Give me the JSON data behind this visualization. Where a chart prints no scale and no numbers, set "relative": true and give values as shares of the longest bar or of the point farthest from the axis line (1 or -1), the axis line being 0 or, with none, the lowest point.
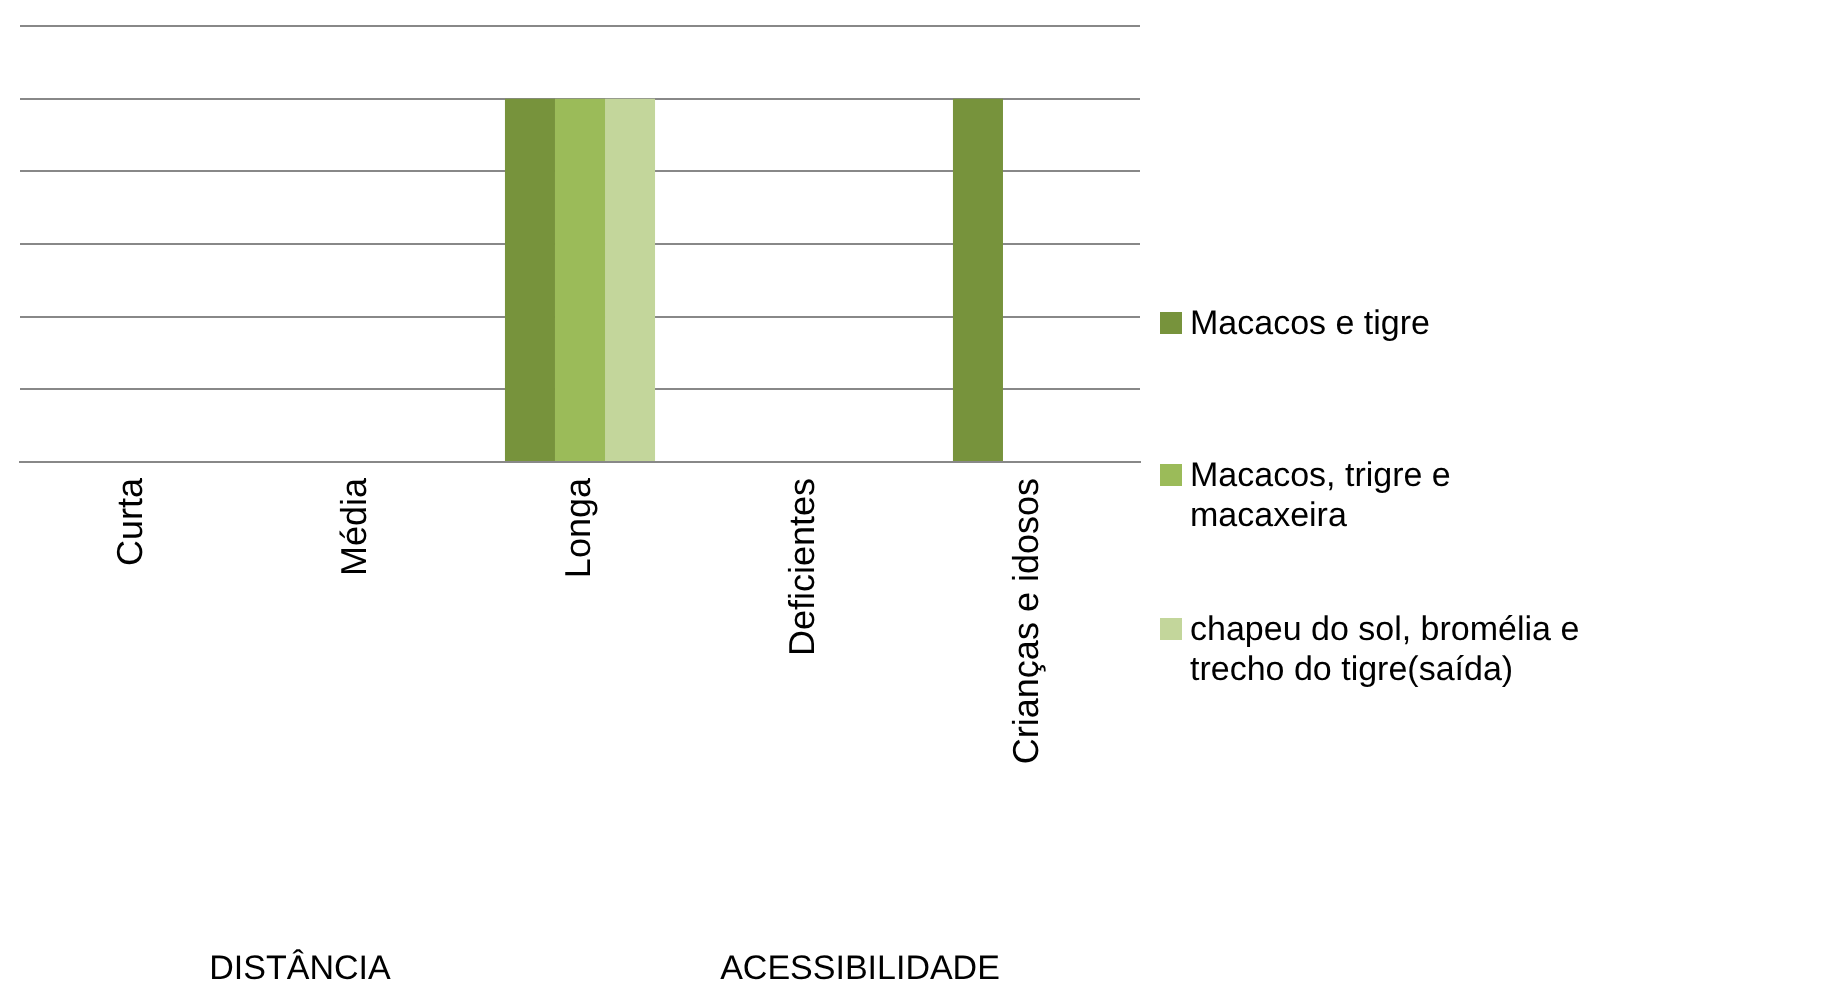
{
  "chart_data": {
    "type": "bar",
    "relative": true,
    "categories": [
      "Curta",
      "Média",
      "Longa",
      "Deficientes",
      "Crianças e idosos"
    ],
    "series": [
      {
        "name": "Macacos e tigre",
        "color": "#77933c",
        "values": [
          0,
          0,
          1,
          0,
          1
        ]
      },
      {
        "name": "Macacos, trigre e macaxeira",
        "color": "#9bbb59",
        "values": [
          0,
          0,
          1,
          0,
          0
        ]
      },
      {
        "name": "chapeu do sol, bromélia e trecho do tigre(saída)",
        "color": "#c3d69b",
        "values": [
          0,
          0,
          1,
          0,
          0
        ]
      }
    ],
    "annotations": [
      "DISTÂNCIA",
      "ACESSIBILIDADE"
    ],
    "grid": "y",
    "legend": "right"
  }
}
